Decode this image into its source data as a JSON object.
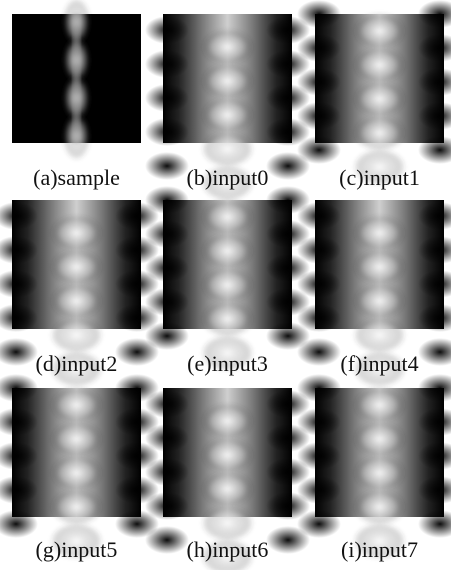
{
  "figure": {
    "panels": [
      {
        "caption": "(a)sample"
      },
      {
        "caption": "(b)input0"
      },
      {
        "caption": "(c)input1"
      },
      {
        "caption": "(d)input2"
      },
      {
        "caption": "(e)input3"
      },
      {
        "caption": "(f)input4"
      },
      {
        "caption": "(g)input5"
      },
      {
        "caption": "(h)input6"
      },
      {
        "caption": "(i)input7"
      }
    ]
  }
}
